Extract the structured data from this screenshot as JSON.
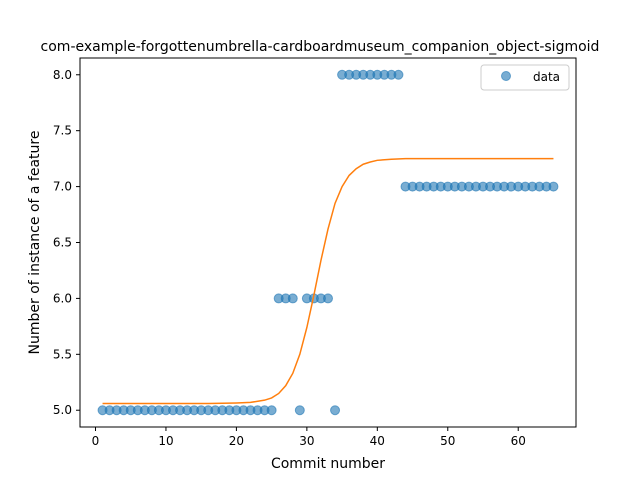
{
  "chart_data": {
    "type": "scatter",
    "title": "com-example-forgottenumbrella-cardboardmuseum_companion_object-sigmoid",
    "xlabel": "Commit number",
    "ylabel": "Number of instance of a feature",
    "xlim": [
      -2.2,
      68.2
    ],
    "ylim": [
      4.85,
      8.15
    ],
    "xticks": [
      0,
      10,
      20,
      30,
      40,
      50,
      60
    ],
    "yticks": [
      5.0,
      5.5,
      6.0,
      6.5,
      7.0,
      7.5,
      8.0
    ],
    "grid": false,
    "legend": {
      "placement": "top-right",
      "entries": [
        "data"
      ]
    },
    "series": [
      {
        "name": "data",
        "kind": "scatter",
        "color": "#1f77b4",
        "x": [
          1,
          2,
          3,
          4,
          5,
          6,
          7,
          8,
          9,
          10,
          11,
          12,
          13,
          14,
          15,
          16,
          17,
          18,
          19,
          20,
          21,
          22,
          23,
          24,
          25,
          26,
          27,
          28,
          29,
          30,
          31,
          32,
          33,
          34,
          35,
          36,
          37,
          38,
          39,
          40,
          41,
          42,
          43,
          44,
          45,
          46,
          47,
          48,
          49,
          50,
          51,
          52,
          53,
          54,
          55,
          56,
          57,
          58,
          59,
          60,
          61,
          62,
          63,
          64,
          65
        ],
        "y": [
          5,
          5,
          5,
          5,
          5,
          5,
          5,
          5,
          5,
          5,
          5,
          5,
          5,
          5,
          5,
          5,
          5,
          5,
          5,
          5,
          5,
          5,
          5,
          5,
          5,
          6,
          6,
          6,
          5,
          6,
          6,
          6,
          6,
          5,
          8,
          8,
          8,
          8,
          8,
          8,
          8,
          8,
          8,
          7,
          7,
          7,
          7,
          7,
          7,
          7,
          7,
          7,
          7,
          7,
          7,
          7,
          7,
          7,
          7,
          7,
          7,
          7,
          7,
          7,
          7
        ]
      },
      {
        "kind": "line",
        "color": "#ff7f0e",
        "x": [
          1,
          6,
          11,
          16,
          20,
          22,
          24,
          25,
          26,
          27,
          28,
          29,
          30,
          31,
          32,
          33,
          34,
          35,
          36,
          37,
          38,
          39,
          40,
          42,
          44,
          48,
          55,
          65
        ],
        "y": [
          5.06,
          5.06,
          5.06,
          5.06,
          5.065,
          5.07,
          5.09,
          5.11,
          5.15,
          5.22,
          5.33,
          5.5,
          5.74,
          6.03,
          6.34,
          6.62,
          6.85,
          7.0,
          7.1,
          7.16,
          7.2,
          7.22,
          7.235,
          7.245,
          7.25,
          7.25,
          7.25,
          7.25
        ]
      }
    ]
  }
}
